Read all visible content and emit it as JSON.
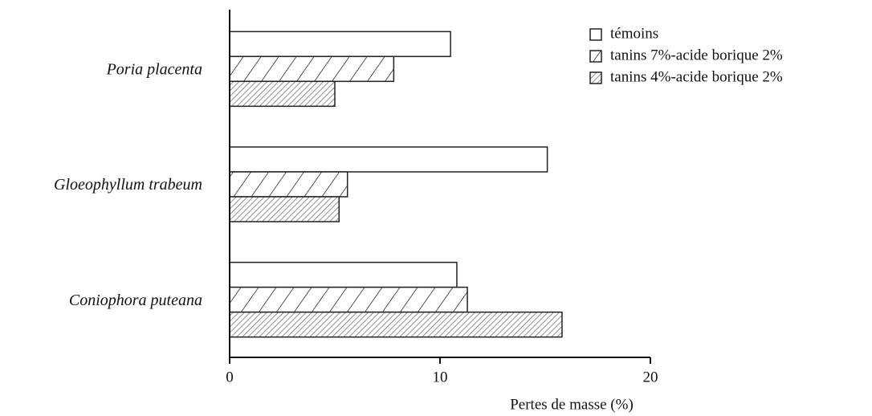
{
  "chart_data": {
    "type": "hbar",
    "xlabel": "Pertes de masse (%)",
    "categories": [
      "Poria placenta",
      "Gloeophyllum trabeum",
      "Coniophora puteana"
    ],
    "series": [
      {
        "name": "témoins",
        "color": "#ffffff",
        "hatch": "none",
        "values": [
          10.5,
          15.1,
          10.8
        ]
      },
      {
        "name": "tanins 7%-acide borique 2%",
        "color": "#ffffff",
        "hatch": "sparse",
        "values": [
          7.8,
          5.6,
          11.3
        ]
      },
      {
        "name": "tanins 4%-acide borique 2%",
        "color": "#ffffff",
        "hatch": "dense",
        "values": [
          5.0,
          5.2,
          15.8
        ]
      }
    ],
    "xlim": [
      0,
      20
    ],
    "xticks": [
      0,
      10,
      20
    ],
    "grid": false,
    "legend": "upper right"
  }
}
